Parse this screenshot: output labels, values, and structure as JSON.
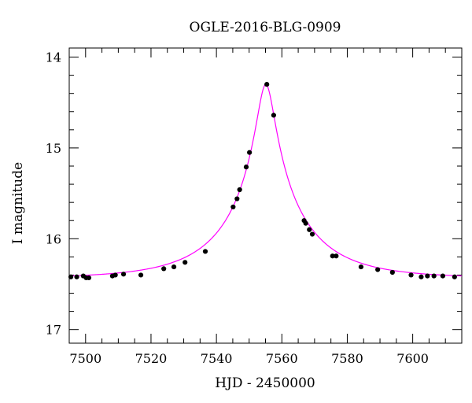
{
  "chart_data": {
    "type": "scatter",
    "title": "OGLE-2016-BLG-0909",
    "xlabel": "HJD - 2450000",
    "ylabel": "I magnitude",
    "xlim": [
      7495,
      7615
    ],
    "ylim": [
      17.15,
      13.9
    ],
    "y_inverted": true,
    "x_ticks_major": [
      7500,
      7520,
      7540,
      7560,
      7580,
      7600
    ],
    "x_tick_labels": [
      "7500",
      "7520",
      "7540",
      "7560",
      "7580",
      "7600"
    ],
    "y_ticks_major": [
      14,
      15,
      16,
      17
    ],
    "y_tick_labels": [
      "14",
      "15",
      "16",
      "17"
    ],
    "grid": false,
    "colors": {
      "points": "#000000",
      "model": "#ff00ff"
    },
    "series": [
      {
        "type": "scatter",
        "x": [
          7495.5,
          7497.3,
          7499.3,
          7500.2,
          7501.0,
          7508.2,
          7509.1,
          7511.6,
          7516.9,
          7523.9,
          7527.0,
          7530.4,
          7536.6,
          7545.1,
          7546.3,
          7547.1,
          7549.1,
          7550.1,
          7555.4,
          7557.5,
          7566.8,
          7567.3,
          7568.4,
          7569.3,
          7575.5,
          7576.6,
          7584.2,
          7589.3,
          7593.8,
          7599.5,
          7602.6,
          7604.5,
          7606.5,
          7609.2,
          7612.8
        ],
        "y": [
          16.42,
          16.42,
          16.41,
          16.43,
          16.43,
          16.41,
          16.4,
          16.39,
          16.4,
          16.33,
          16.31,
          16.26,
          16.14,
          15.65,
          15.56,
          15.46,
          15.21,
          15.05,
          14.3,
          14.64,
          15.8,
          15.83,
          15.9,
          15.95,
          16.19,
          16.19,
          16.31,
          16.34,
          16.37,
          16.4,
          16.42,
          16.41,
          16.41,
          16.41,
          16.42
        ]
      },
      {
        "type": "line",
        "model": {
          "baseline": 16.435,
          "peak_time": 7555.1,
          "peak_mag": 14.3,
          "u0": 0.1,
          "tE": 25
        }
      }
    ]
  }
}
